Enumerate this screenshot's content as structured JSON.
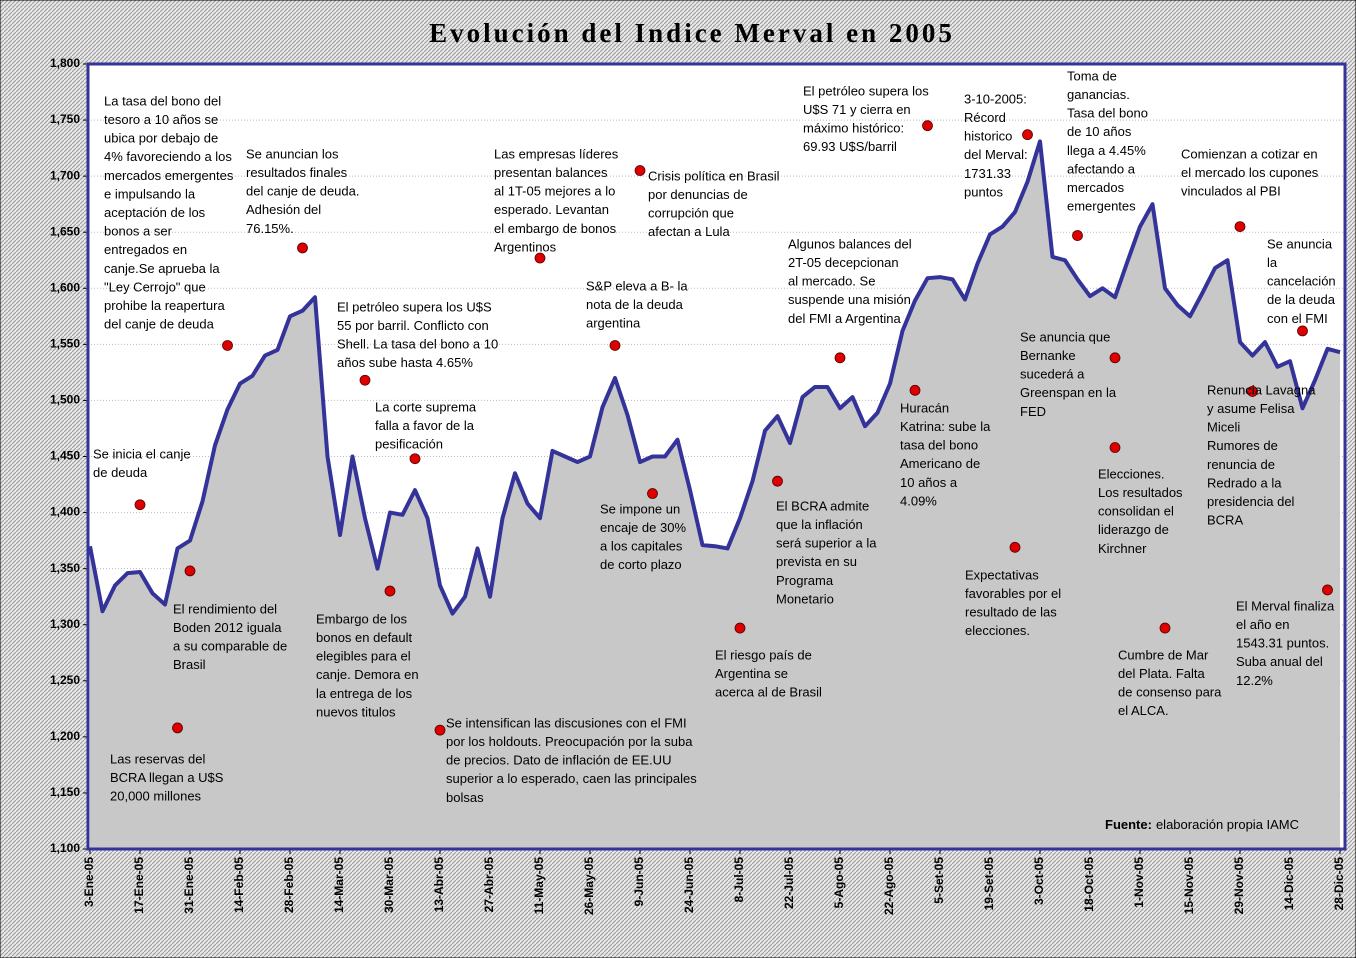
{
  "chart_data": {
    "type": "line",
    "title": "Evolución del Indice Merval en 2005",
    "color": "#333399",
    "area_color": "#c8c8c8",
    "marker_color": "#dd0000",
    "grid": true,
    "ylim": [
      1100,
      1800
    ],
    "yticks": [
      {
        "value": 1100,
        "label": "1,100"
      },
      {
        "value": 1150,
        "label": "1,150"
      },
      {
        "value": 1200,
        "label": "1,200"
      },
      {
        "value": 1250,
        "label": "1,250"
      },
      {
        "value": 1300,
        "label": "1,300"
      },
      {
        "value": 1350,
        "label": "1,350"
      },
      {
        "value": 1400,
        "label": "1,400"
      },
      {
        "value": 1450,
        "label": "1,450"
      },
      {
        "value": 1500,
        "label": "1,500"
      },
      {
        "value": 1550,
        "label": "1,550"
      },
      {
        "value": 1600,
        "label": "1,600"
      },
      {
        "value": 1650,
        "label": "1,650"
      },
      {
        "value": 1700,
        "label": "1,700"
      },
      {
        "value": 1750,
        "label": "1,750"
      },
      {
        "value": 1800,
        "label": "1,800"
      }
    ],
    "categories": [
      "3-Ene-05",
      null,
      null,
      null,
      "17-Ene-05",
      null,
      null,
      null,
      "31-Ene-05",
      null,
      null,
      null,
      "14-Feb-05",
      null,
      null,
      null,
      "28-Feb-05",
      null,
      null,
      null,
      "14-Mar-05",
      null,
      null,
      null,
      "30-Mar-05",
      null,
      null,
      null,
      "13-Abr-05",
      null,
      null,
      null,
      "27-Abr-05",
      null,
      null,
      null,
      "11-May-05",
      null,
      null,
      null,
      "26-May-05",
      null,
      null,
      null,
      "9-Jun-05",
      null,
      null,
      null,
      "24-Jun-05",
      null,
      null,
      null,
      "8-Jul-05",
      null,
      null,
      null,
      "22-Jul-05",
      null,
      null,
      null,
      "5-Ago-05",
      null,
      null,
      null,
      "22-Ago-05",
      null,
      null,
      null,
      "5-Set-05",
      null,
      null,
      null,
      "19-Set-05",
      null,
      null,
      null,
      "3-Oct-05",
      null,
      null,
      null,
      "18-Oct-05",
      null,
      null,
      null,
      "1-Nov-05",
      null,
      null,
      null,
      "15-Nov-05",
      null,
      null,
      null,
      "29-Nov-05",
      null,
      null,
      null,
      "14-Dic-05",
      null,
      null,
      null,
      "28-Dic-05"
    ],
    "values": [
      1370,
      1312,
      1335,
      1346,
      1347,
      1328,
      1318,
      1368,
      1375,
      1410,
      1460,
      1492,
      1515,
      1522,
      1540,
      1545,
      1575,
      1580,
      1592,
      1450,
      1380,
      1450,
      1395,
      1350,
      1400,
      1398,
      1420,
      1395,
      1335,
      1310,
      1325,
      1368,
      1325,
      1395,
      1435,
      1408,
      1395,
      1455,
      1450,
      1445,
      1450,
      1494,
      1520,
      1487,
      1445,
      1450,
      1450,
      1465,
      1420,
      1371,
      1370,
      1368,
      1395,
      1428,
      1473,
      1486,
      1462,
      1503,
      1512,
      1512,
      1493,
      1503,
      1477,
      1489,
      1515,
      1562,
      1589,
      1609,
      1610,
      1608,
      1590,
      1622,
      1648,
      1655,
      1668,
      1695,
      1731,
      1628,
      1625,
      1608,
      1593,
      1600,
      1592,
      1624,
      1655,
      1675,
      1600,
      1585,
      1575,
      1596,
      1618,
      1625,
      1552,
      1540,
      1552,
      1530,
      1535,
      1493,
      1518,
      1546,
      1543
    ],
    "annotations": [
      {
        "x": 4,
        "y": 1407,
        "lines": [
          "Se inicia el canje",
          "de deuda"
        ]
      },
      {
        "x": 7,
        "y": 1208,
        "lines": [
          "Las reservas del",
          "BCRA llegan a U$S",
          "20,000 millones"
        ]
      },
      {
        "x": 8,
        "y": 1348,
        "lines": [
          "El rendimiento del",
          "Boden 2012 iguala",
          "a su comparable de",
          "Brasil"
        ]
      },
      {
        "x": 11,
        "y": 1549,
        "lines": [
          "La tasa del bono del",
          "tesoro a 10 años se",
          "ubica por debajo de",
          "4% favoreciendo a los",
          "mercados emergentes",
          "e impulsando la",
          "aceptación de  los",
          "bonos a ser",
          "entregados en",
          "canje.Se aprueba la",
          "\"Ley Cerrojo\" que",
          "prohibe la reapertura",
          "del canje de deuda"
        ]
      },
      {
        "x": 17,
        "y": 1636,
        "lines": [
          "Se anuncian los",
          "resultados finales",
          "del canje de deuda.",
          "Adhesión del",
          "76.15%."
        ]
      },
      {
        "x": 22,
        "y": 1518,
        "lines": [
          "El petróleo supera los U$S",
          "55 por barril. Conflicto con",
          "Shell. La tasa del bono a 10",
          "años sube hasta 4.65%"
        ]
      },
      {
        "x": 24,
        "y": 1330,
        "lines": [
          "Embargo de los",
          "bonos en default",
          "elegibles para el",
          "canje. Demora en",
          "la entrega de los",
          "nuevos titulos"
        ]
      },
      {
        "x": 26,
        "y": 1448,
        "lines": [
          "La corte suprema",
          "falla a favor de la",
          "pesificación"
        ]
      },
      {
        "x": 28,
        "y": 1206,
        "lines": [
          "Se intensifican las discusiones con el FMI",
          "por los holdouts. Preocupación por la suba",
          "de precios. Dato de inflación de EE.UU",
          "superior a lo esperado, caen las principales",
          "bolsas"
        ]
      },
      {
        "x": 36,
        "y": 1627,
        "lines": [
          "Las empresas líderes",
          "presentan balances",
          "al 1T-05 mejores a lo",
          "esperado. Levantan",
          "el embargo de bonos",
          "Argentinos"
        ]
      },
      {
        "x": 42,
        "y": 1549,
        "lines": [
          "S&P eleva a B- la",
          "nota de la deuda",
          "argentina"
        ]
      },
      {
        "x": 44,
        "y": 1705,
        "lines": [
          "Crisis política en Brasil",
          "por denuncias de",
          "corrupción que",
          "afectan a Lula"
        ]
      },
      {
        "x": 45,
        "y": 1417,
        "lines": [
          "Se impone un",
          "encaje de 30%",
          "a los capitales",
          "de corto plazo"
        ]
      },
      {
        "x": 52,
        "y": 1297,
        "lines": [
          "El riesgo país de",
          "Argentina se",
          "acerca al de Brasil"
        ]
      },
      {
        "x": 55,
        "y": 1428,
        "lines": [
          "El BCRA  admite",
          "que la inflación",
          "será superior a la",
          "prevista en su",
          "Programa",
          "Monetario"
        ]
      },
      {
        "x": 60,
        "y": 1538,
        "lines": [
          "Algunos balances del",
          "2T-05 decepcionan",
          "al mercado. Se",
          "suspende una misión",
          "del FMI a Argentina"
        ]
      },
      {
        "x": 66,
        "y": 1509,
        "lines": [
          "Huracán",
          "Katrina: sube la",
          "tasa del bono",
          "Americano de",
          "10 años a",
          "4.09%"
        ]
      },
      {
        "x": 67,
        "y": 1745,
        "lines": [
          "El petróleo supera los",
          "U$S 71 y cierra en",
          "máximo  histórico:",
          "69.93 U$S/barril"
        ]
      },
      {
        "x": 74,
        "y": 1369,
        "lines": [
          "Expectativas",
          "favorables por el",
          "resultado de las",
          "elecciones."
        ]
      },
      {
        "x": 75,
        "y": 1737,
        "lines": [
          "3-10-2005:",
          "Récord",
          "historico",
          "del Merval:",
          "1731.33",
          "puntos"
        ]
      },
      {
        "x": 79,
        "y": 1647,
        "lines": [
          "Toma de",
          "ganancias.",
          "Tasa del bono",
          "de 10 años",
          "llega a 4.45%",
          "afectando a",
          "mercados",
          "emergentes"
        ]
      },
      {
        "x": 82,
        "y": 1538,
        "lines": [
          "Se anuncia que",
          "Bernanke",
          "sucederá a",
          "Greenspan en la",
          "FED"
        ]
      },
      {
        "x": 82,
        "y": 1458,
        "lines": [
          "Elecciones.",
          "Los resultados",
          "consolidan el",
          "liderazgo de",
          "Kirchner"
        ]
      },
      {
        "x": 86,
        "y": 1297,
        "lines": [
          "Cumbre de Mar",
          "del Plata.  Falta",
          "de consenso para",
          "el ALCA."
        ]
      },
      {
        "x": 92,
        "y": 1655,
        "lines": [
          "Comienzan a cotizar en",
          "el mercado los cupones",
          "vinculados al PBI"
        ]
      },
      {
        "x": 93,
        "y": 1508,
        "lines": [
          "Renuncia Lavagna",
          "y asume Felisa",
          "Miceli",
          "Rumores de",
          "renuncia de",
          "Redrado a la",
          "presidencia del",
          "BCRA"
        ]
      },
      {
        "x": 97,
        "y": 1562,
        "lines": [
          "Se anuncia",
          "la",
          "cancelación",
          "de la deuda",
          "con el FMI"
        ]
      },
      {
        "x": 99,
        "y": 1331,
        "lines": [
          "El Merval finaliza",
          "el año en",
          "1543.31 puntos.",
          "Suba anual del",
          "12.2%"
        ]
      }
    ],
    "source": {
      "label": "Fuente:",
      "text": "elaboración propia IAMC"
    }
  }
}
